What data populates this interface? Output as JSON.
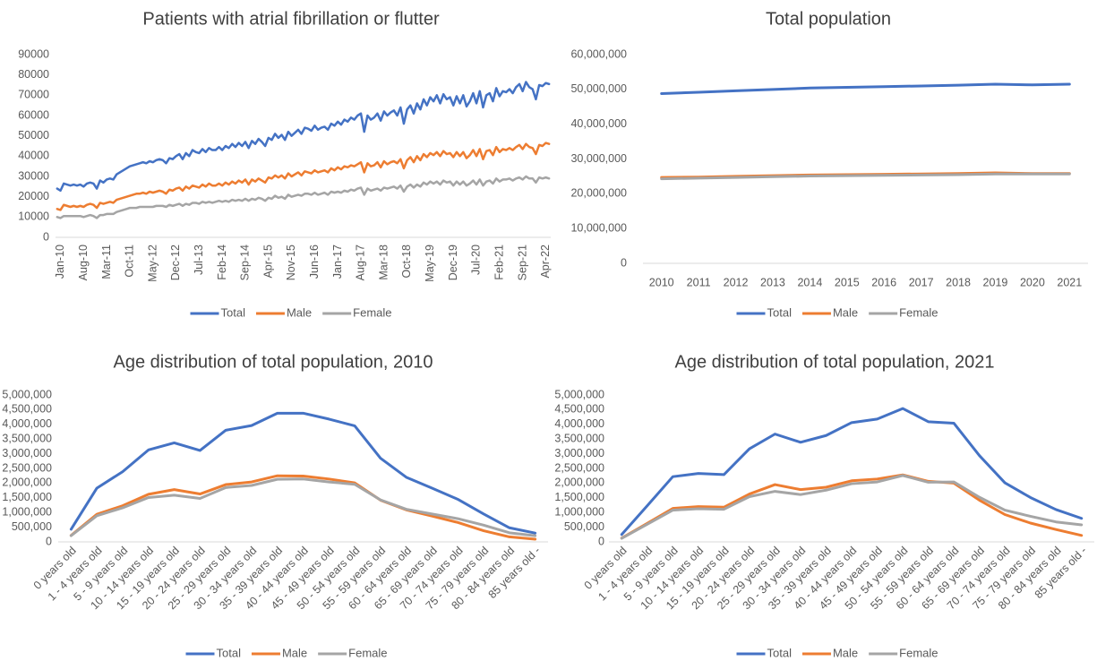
{
  "chart_data": [
    {
      "type": "line",
      "title": "Patients with atrial fibrillation or flutter",
      "categories": [
        "Jan-10",
        null,
        null,
        null,
        null,
        null,
        null,
        "Aug-10",
        null,
        null,
        null,
        null,
        null,
        null,
        "Mar-11",
        null,
        null,
        null,
        null,
        null,
        null,
        "Oct-11",
        null,
        null,
        null,
        null,
        null,
        null,
        "May-12",
        null,
        null,
        null,
        null,
        null,
        null,
        "Dec-12",
        null,
        null,
        null,
        null,
        null,
        null,
        "Jul-13",
        null,
        null,
        null,
        null,
        null,
        null,
        "Feb-14",
        null,
        null,
        null,
        null,
        null,
        null,
        "Sep-14",
        null,
        null,
        null,
        null,
        null,
        null,
        "Apr-15",
        null,
        null,
        null,
        null,
        null,
        null,
        "Nov-15",
        null,
        null,
        null,
        null,
        null,
        null,
        "Jun-16",
        null,
        null,
        null,
        null,
        null,
        null,
        "Jan-17",
        null,
        null,
        null,
        null,
        null,
        null,
        "Aug-17",
        null,
        null,
        null,
        null,
        null,
        null,
        "Mar-18",
        null,
        null,
        null,
        null,
        null,
        null,
        "Oct-18",
        null,
        null,
        null,
        null,
        null,
        null,
        "May-19",
        null,
        null,
        null,
        null,
        null,
        null,
        "Dec-19",
        null,
        null,
        null,
        null,
        null,
        null,
        "Jul-20",
        null,
        null,
        null,
        null,
        null,
        null,
        "Feb-21",
        null,
        null,
        null,
        null,
        null,
        null,
        "Sep-21",
        null,
        null,
        null,
        null,
        null,
        null,
        "Apr-22",
        null,
        null
      ],
      "series": [
        {
          "name": "Total",
          "color": "#4472c4",
          "values": [
            24000,
            23000,
            26500,
            26000,
            25500,
            26000,
            25500,
            26000,
            25000,
            26500,
            27000,
            26500,
            24000,
            28000,
            27000,
            28500,
            29000,
            28500,
            31000,
            32000,
            33000,
            34000,
            35000,
            35500,
            36000,
            36500,
            37000,
            36500,
            37500,
            37000,
            38000,
            38500,
            38000,
            36500,
            39000,
            38500,
            40000,
            41000,
            38500,
            41500,
            40000,
            43000,
            42000,
            41500,
            43500,
            42000,
            44000,
            43000,
            43000,
            44500,
            43000,
            45000,
            44000,
            46000,
            44500,
            46500,
            45000,
            47000,
            44000,
            47500,
            46000,
            48500,
            47000,
            45000,
            49000,
            48000,
            51000,
            49000,
            50500,
            48000,
            52000,
            50000,
            51500,
            53000,
            51000,
            54000,
            53500,
            52500,
            55000,
            53000,
            54000,
            54500,
            53000,
            56000,
            55000,
            57000,
            55500,
            58000,
            57000,
            59000,
            58000,
            60000,
            61000,
            52000,
            60000,
            58000,
            59000,
            61000,
            57500,
            62000,
            60000,
            61500,
            62500,
            60000,
            64000,
            56000,
            63000,
            65000,
            61000,
            66000,
            63000,
            68000,
            65000,
            69000,
            67000,
            70000,
            66000,
            70500,
            68000,
            69000,
            65000,
            69500,
            66000,
            70000,
            64500,
            67000,
            71000,
            66000,
            72000,
            64000,
            70000,
            71000,
            67000,
            73500,
            69500,
            72000,
            71500,
            73000,
            71000,
            74000,
            75500,
            72000,
            76500,
            74000,
            73000,
            68000,
            75000,
            74500,
            76000,
            75500
          ]
        },
        {
          "name": "Male",
          "color": "#ed7d31",
          "values": [
            14000,
            13500,
            16000,
            15500,
            15000,
            15500,
            15000,
            15500,
            15000,
            16000,
            16500,
            16000,
            14500,
            17000,
            16500,
            17000,
            17500,
            17000,
            18500,
            19000,
            19500,
            20000,
            20500,
            21000,
            21500,
            21500,
            22000,
            21500,
            22500,
            22000,
            22500,
            23000,
            22500,
            21500,
            23500,
            23000,
            24000,
            24500,
            23000,
            25000,
            24000,
            25500,
            25000,
            24500,
            26000,
            25000,
            26500,
            25500,
            25500,
            26500,
            25500,
            27000,
            26000,
            27500,
            26500,
            28000,
            27000,
            28500,
            26000,
            28500,
            27500,
            29000,
            28000,
            27000,
            29500,
            29000,
            30500,
            29500,
            30500,
            29000,
            31500,
            30000,
            31000,
            32000,
            30500,
            32500,
            32000,
            31500,
            33000,
            32000,
            32500,
            33000,
            32000,
            34000,
            33000,
            34500,
            33500,
            35000,
            34500,
            35500,
            35000,
            36000,
            37000,
            32000,
            36500,
            35000,
            35500,
            37000,
            34500,
            37500,
            36000,
            37000,
            37500,
            36500,
            38500,
            34000,
            38000,
            39500,
            37000,
            40000,
            38000,
            41000,
            39500,
            41500,
            40500,
            42000,
            40000,
            42500,
            41000,
            41500,
            39500,
            42000,
            40000,
            42000,
            39000,
            40500,
            43000,
            40000,
            43500,
            38500,
            42500,
            43000,
            40500,
            44500,
            42000,
            43500,
            43000,
            44000,
            43000,
            44500,
            45500,
            43500,
            46000,
            44500,
            44000,
            41000,
            45500,
            45000,
            46500,
            46000
          ]
        },
        {
          "name": "Female",
          "color": "#a5a5a5",
          "values": [
            10000,
            9500,
            10500,
            10500,
            10500,
            10500,
            10500,
            10500,
            10000,
            10500,
            11000,
            10500,
            9500,
            11000,
            11000,
            11500,
            11500,
            11500,
            12500,
            13000,
            13500,
            14000,
            14500,
            14500,
            14500,
            15000,
            15000,
            15000,
            15000,
            15000,
            15500,
            15500,
            15500,
            15000,
            16000,
            15500,
            16000,
            16500,
            15500,
            16500,
            16000,
            17000,
            17000,
            16500,
            17500,
            17000,
            17500,
            17000,
            17500,
            18000,
            17500,
            18000,
            17500,
            18500,
            18000,
            18500,
            18000,
            19000,
            18000,
            19000,
            18500,
            19500,
            19000,
            18000,
            19500,
            19000,
            20500,
            19500,
            20000,
            19000,
            21000,
            20000,
            20500,
            21000,
            20500,
            21500,
            21500,
            21000,
            22000,
            21000,
            21500,
            22000,
            21000,
            22500,
            22000,
            22500,
            22000,
            23000,
            22500,
            23500,
            23000,
            24000,
            24500,
            21000,
            24000,
            23000,
            23500,
            24000,
            23000,
            24500,
            24000,
            24500,
            25000,
            24000,
            25500,
            22500,
            25000,
            26000,
            24500,
            26000,
            25000,
            27000,
            26000,
            27500,
            26500,
            27500,
            26000,
            28000,
            27000,
            27500,
            25500,
            27500,
            26000,
            27500,
            25500,
            26500,
            28000,
            26000,
            28500,
            25500,
            27500,
            28000,
            26500,
            29000,
            27500,
            28500,
            28500,
            29000,
            28000,
            29000,
            29500,
            28500,
            30000,
            29000,
            29000,
            27000,
            29500,
            29000,
            29500,
            29000
          ]
        }
      ],
      "ylim": [
        0,
        90000
      ],
      "yticks": [
        0,
        10000,
        20000,
        30000,
        40000,
        50000,
        60000,
        70000,
        80000,
        90000
      ],
      "grid": false,
      "legend": "bottom"
    },
    {
      "type": "line",
      "title": "Total population",
      "categories": [
        "2010",
        "2011",
        "2012",
        "2013",
        "2014",
        "2015",
        "2016",
        "2017",
        "2018",
        "2019",
        "2020",
        "2021"
      ],
      "series": [
        {
          "name": "Total",
          "color": "#4472c4",
          "values": [
            48800000,
            49200000,
            49600000,
            50000000,
            50400000,
            50600000,
            50800000,
            51000000,
            51200000,
            51500000,
            51300000,
            51500000
          ]
        },
        {
          "name": "Male",
          "color": "#ed7d31",
          "values": [
            24700000,
            24800000,
            25000000,
            25200000,
            25400000,
            25500000,
            25600000,
            25700000,
            25800000,
            26000000,
            25800000,
            25800000
          ]
        },
        {
          "name": "Female",
          "color": "#a5a5a5",
          "values": [
            24300000,
            24500000,
            24700000,
            24900000,
            25100000,
            25200000,
            25300000,
            25400000,
            25500000,
            25700000,
            25700000,
            25700000
          ]
        }
      ],
      "ylim": [
        0,
        60000000
      ],
      "yticks": [
        0,
        {
          "value": 10000000,
          "label": "10,000,000"
        },
        {
          "value": 20000000,
          "label": "20,000,000"
        },
        {
          "value": 30000000,
          "label": "30,000,000"
        },
        {
          "value": 40000000,
          "label": "40,000,000"
        },
        {
          "value": 50000000,
          "label": "50,000,000"
        },
        {
          "value": 60000000,
          "label": "60,000,000"
        }
      ],
      "grid": false,
      "legend": "bottom"
    },
    {
      "type": "line",
      "title": "Age distribution of total population, 2010",
      "categories": [
        "0 years old",
        "1 - 4 years old",
        "5 - 9 years old",
        "10 - 14 years old",
        "15 - 19 years old",
        "20 - 24 years old",
        "25 - 29 years old",
        "30 - 34 years old",
        "35 - 39 years old",
        "40 - 44 years old",
        "45 - 49 years old",
        "50 - 54 years old",
        "55 - 59 years old",
        "60 - 64 years old",
        "65 - 69 years old",
        "70 - 74 years old",
        "75 - 79 years old",
        "80 - 84 years old",
        "85 years old -"
      ],
      "series": [
        {
          "name": "Total",
          "color": "#4472c4",
          "values": [
            430000,
            1830000,
            2390000,
            3130000,
            3370000,
            3110000,
            3800000,
            3960000,
            4380000,
            4380000,
            4180000,
            3950000,
            2850000,
            2200000,
            1830000,
            1450000,
            950000,
            480000,
            300000
          ]
        },
        {
          "name": "Male",
          "color": "#ed7d31",
          "values": [
            220000,
            940000,
            1230000,
            1620000,
            1780000,
            1630000,
            1950000,
            2040000,
            2250000,
            2240000,
            2140000,
            2010000,
            1420000,
            1090000,
            880000,
            660000,
            380000,
            170000,
            90000
          ]
        },
        {
          "name": "Female",
          "color": "#a5a5a5",
          "values": [
            210000,
            890000,
            1160000,
            1510000,
            1590000,
            1480000,
            1850000,
            1920000,
            2130000,
            2140000,
            2040000,
            1960000,
            1430000,
            1110000,
            950000,
            790000,
            570000,
            310000,
            210000
          ]
        }
      ],
      "ylim": [
        0,
        5000000
      ],
      "yticks": [
        0,
        {
          "value": 500000,
          "label": "500,000"
        },
        {
          "value": 1000000,
          "label": "1,000,000"
        },
        {
          "value": 1500000,
          "label": "1,500,000"
        },
        {
          "value": 2000000,
          "label": "2,000,000"
        },
        {
          "value": 2500000,
          "label": "2,500,000"
        },
        {
          "value": 3000000,
          "label": "3,000,000"
        },
        {
          "value": 3500000,
          "label": "3,500,000"
        },
        {
          "value": 4000000,
          "label": "4,000,000"
        },
        {
          "value": 4500000,
          "label": "4,500,000"
        },
        {
          "value": 5000000,
          "label": "5,000,000"
        }
      ],
      "grid": false,
      "legend": "bottom"
    },
    {
      "type": "line",
      "title": "Age distribution of total population, 2021",
      "categories": [
        "0 years old",
        "1 - 4 years old",
        "5 - 9 years old",
        "10 - 14 years old",
        "15 - 19 years old",
        "20 - 24 years old",
        "25 - 29 years old",
        "30 - 34 years old",
        "35 - 39 years old",
        "40 - 44 years old",
        "45 - 49 years old",
        "50 - 54 years old",
        "55 - 59 years old",
        "60 - 64 years old",
        "65 - 69 years old",
        "70 - 74 years old",
        "75 - 79 years old",
        "80 - 84 years old",
        "85 years old -"
      ],
      "series": [
        {
          "name": "Total",
          "color": "#4472c4",
          "values": [
            250000,
            1230000,
            2220000,
            2330000,
            2290000,
            3170000,
            3670000,
            3390000,
            3620000,
            4060000,
            4180000,
            4540000,
            4090000,
            4040000,
            2940000,
            2010000,
            1510000,
            1100000,
            800000
          ]
        },
        {
          "name": "Male",
          "color": "#ed7d31",
          "values": [
            130000,
            630000,
            1140000,
            1200000,
            1180000,
            1630000,
            1950000,
            1780000,
            1860000,
            2080000,
            2140000,
            2280000,
            2060000,
            2000000,
            1420000,
            930000,
            640000,
            420000,
            220000
          ]
        },
        {
          "name": "Female",
          "color": "#a5a5a5",
          "values": [
            120000,
            600000,
            1080000,
            1130000,
            1110000,
            1540000,
            1720000,
            1610000,
            1760000,
            1980000,
            2040000,
            2260000,
            2030000,
            2040000,
            1520000,
            1080000,
            870000,
            680000,
            580000
          ]
        }
      ],
      "ylim": [
        0,
        5000000
      ],
      "yticks": [
        0,
        {
          "value": 500000,
          "label": "500,000"
        },
        {
          "value": 1000000,
          "label": "1,000,000"
        },
        {
          "value": 1500000,
          "label": "1,500,000"
        },
        {
          "value": 2000000,
          "label": "2,000,000"
        },
        {
          "value": 2500000,
          "label": "2,500,000"
        },
        {
          "value": 3000000,
          "label": "3,000,000"
        },
        {
          "value": 3500000,
          "label": "3,500,000"
        },
        {
          "value": 4000000,
          "label": "4,000,000"
        },
        {
          "value": 4500000,
          "label": "4,500,000"
        },
        {
          "value": 5000000,
          "label": "5,000,000"
        }
      ],
      "grid": false,
      "legend": "bottom"
    }
  ]
}
